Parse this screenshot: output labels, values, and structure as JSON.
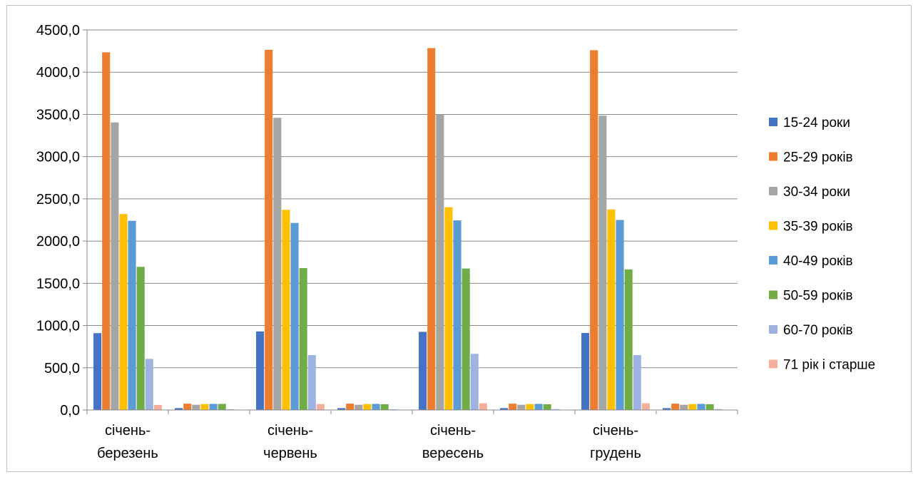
{
  "chart_data": {
    "type": "bar",
    "title": "",
    "xlabel": "",
    "ylabel": "",
    "ylim": [
      0,
      4500
    ],
    "yticks": [
      "0,0",
      "500,0",
      "1000,0",
      "1500,0",
      "2000,0",
      "2500,0",
      "3000,0",
      "3500,0",
      "4000,0",
      "4500,0"
    ],
    "grid": true,
    "legend_position": "right",
    "categories": [
      [
        "січень-",
        "березень"
      ],
      [
        "",
        ""
      ],
      [
        "січень-",
        "червень"
      ],
      [
        "",
        ""
      ],
      [
        "січень-",
        "вересень"
      ],
      [
        "",
        ""
      ],
      [
        "січень-",
        "грудень"
      ],
      [
        "",
        ""
      ]
    ],
    "series": [
      {
        "name": "15-24 роки",
        "color": "#4472c4",
        "values": [
          910,
          22,
          930,
          22,
          925,
          22,
          912,
          22
        ]
      },
      {
        "name": "25-29 років",
        "color": "#ed7d31",
        "values": [
          4235,
          75,
          4265,
          75,
          4285,
          75,
          4260,
          75
        ]
      },
      {
        "name": "30-34 роки",
        "color": "#a5a5a5",
        "values": [
          3405,
          62,
          3460,
          62,
          3500,
          62,
          3485,
          62
        ]
      },
      {
        "name": "35-39 років",
        "color": "#ffc000",
        "values": [
          2320,
          70,
          2370,
          70,
          2400,
          70,
          2375,
          70
        ]
      },
      {
        "name": "40-49 років",
        "color": "#5b9bd5",
        "values": [
          2240,
          72,
          2215,
          72,
          2245,
          72,
          2250,
          72
        ]
      },
      {
        "name": "50-59 років",
        "color": "#70ad47",
        "values": [
          1695,
          72,
          1680,
          68,
          1675,
          68,
          1665,
          68
        ]
      },
      {
        "name": "60-70 років",
        "color": "#9eb3e2",
        "values": [
          605,
          8,
          650,
          8,
          665,
          10,
          650,
          10
        ]
      },
      {
        "name": "71 рік і старше",
        "color": "#f4b09a",
        "values": [
          60,
          0,
          70,
          0,
          80,
          0,
          80,
          0
        ]
      }
    ]
  }
}
